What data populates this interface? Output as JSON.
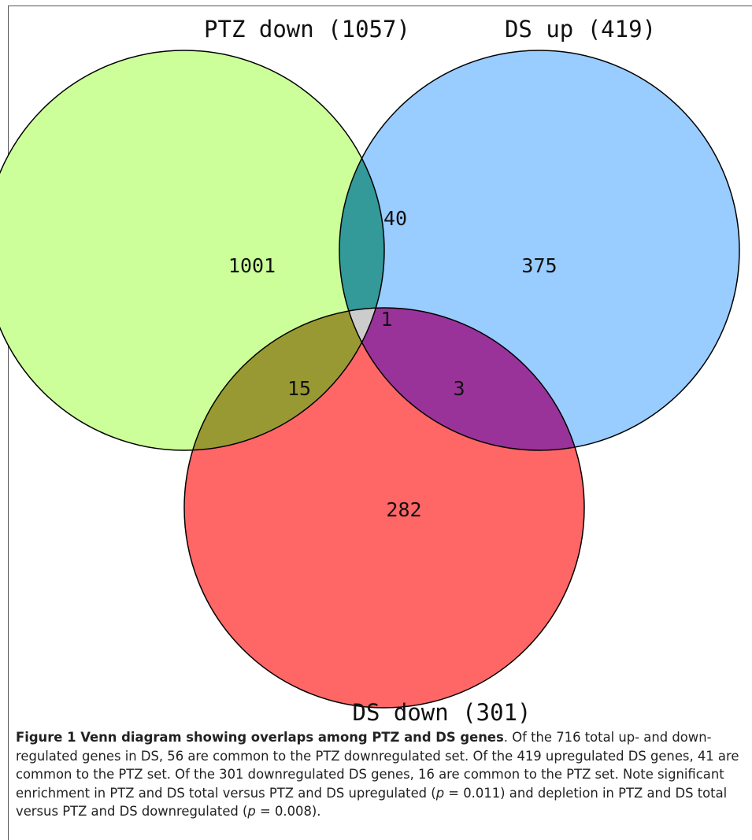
{
  "venn": {
    "sets": {
      "ptz_down": {
        "label": "PTZ down (1057)",
        "color": "#ccff99"
      },
      "ds_up": {
        "label": "DS up (419)",
        "color": "#99ccff"
      },
      "ds_down": {
        "label": "DS down (301)",
        "color": "#ff6666"
      }
    },
    "regions": {
      "ptz_only": "1001",
      "ds_up_only": "375",
      "ds_down_only": "282",
      "ptz_dsup": "40",
      "ptz_dsdown": "15",
      "dsup_dsdown": "3",
      "all_three": "1"
    },
    "region_colors": {
      "ptz_dsup": "#339999",
      "ptz_dsdown": "#999933",
      "dsup_dsdown": "#993399",
      "all_three": "#cccccc"
    }
  },
  "caption": {
    "title": "Figure 1 Venn diagram showing overlaps among PTZ and DS genes",
    "text_1": ". Of the 716 total up- and down-regulated genes in DS, 56 are common to the PTZ downregulated set. Of the 419 upregulated DS genes, 41 are common to the PTZ set. Of the 301 downregulated DS genes, 16 are common to the PTZ set. Note significant enrichment in PTZ and DS total versus PTZ and DS upregulated (",
    "p_symbol": "p",
    "text_2": " = 0.011) and depletion in PTZ and DS total versus PTZ and DS downregulated (",
    "text_3": " = 0.008)."
  }
}
